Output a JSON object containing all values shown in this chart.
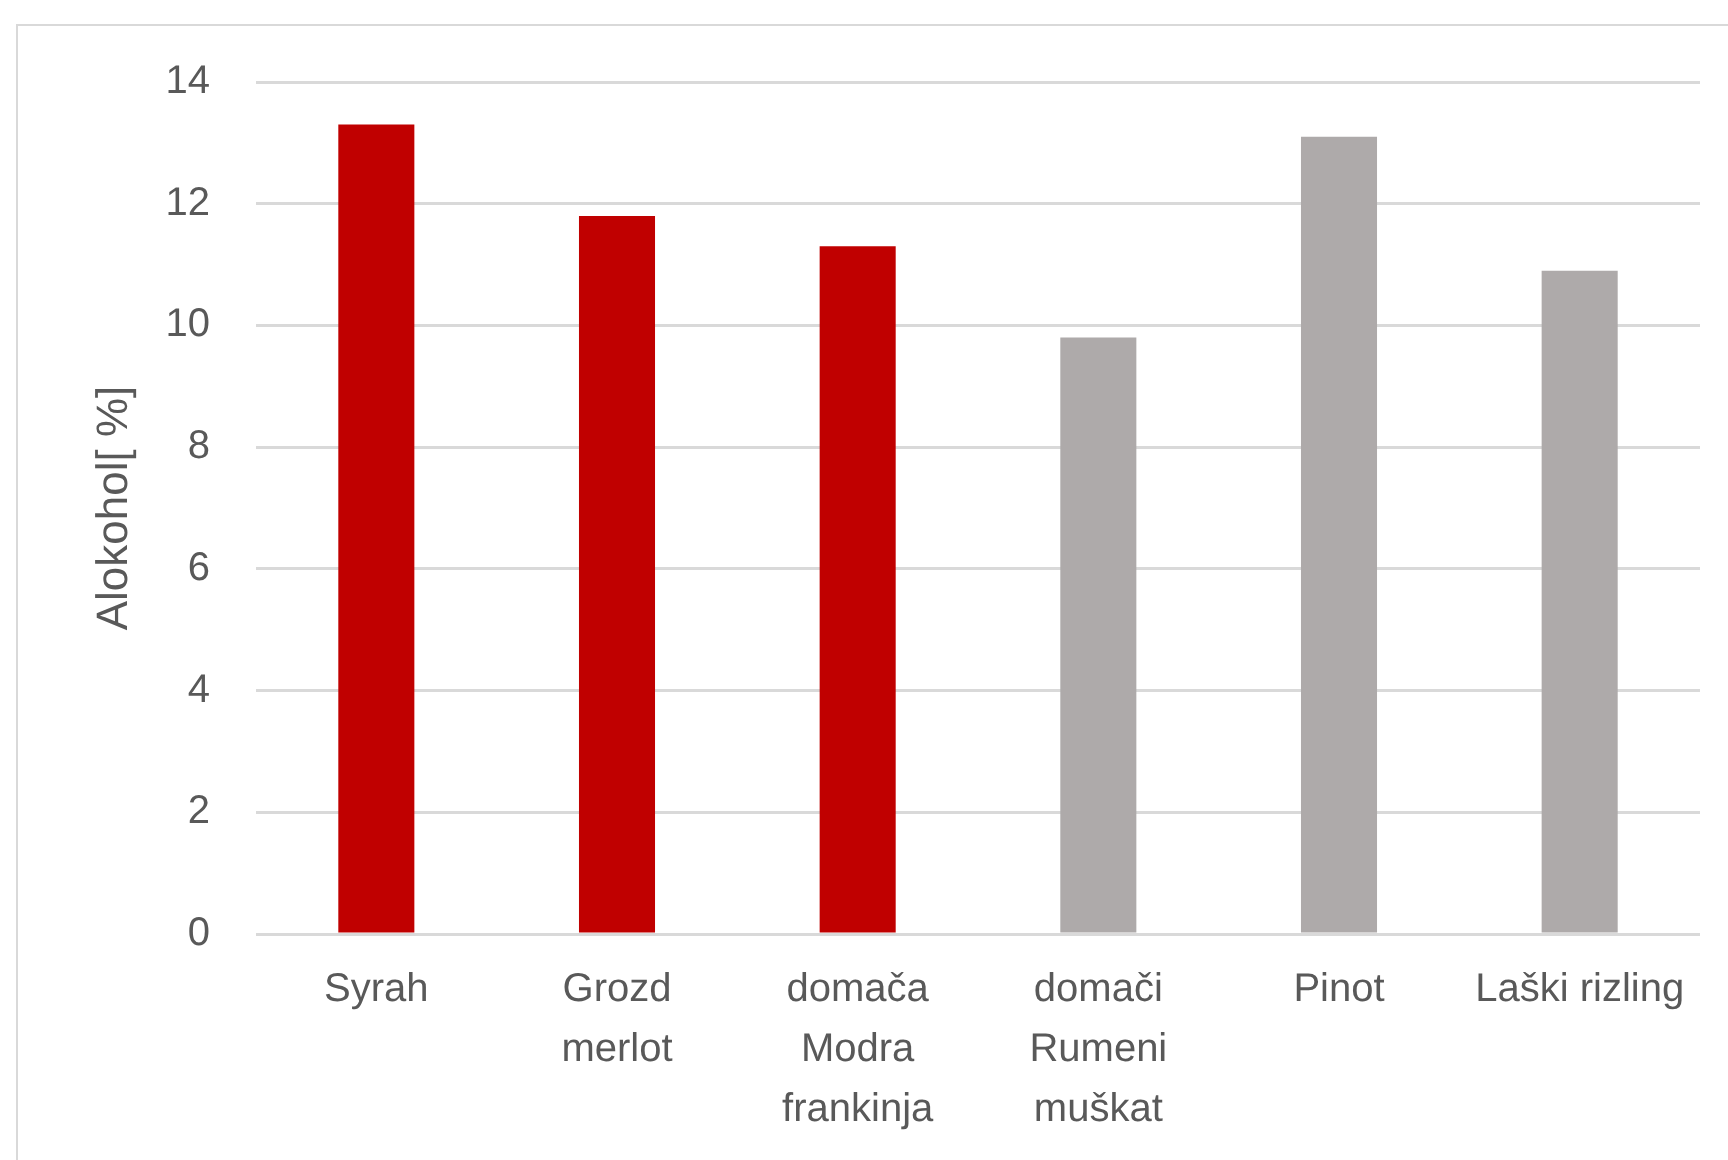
{
  "chart_data": {
    "type": "bar",
    "ylabel": "Alokohol[ %]",
    "categories": [
      "Syrah",
      "Grozd merlot",
      "domača Modra frankinja",
      "domači Rumeni muškat",
      "Pinot",
      "Laški rizling"
    ],
    "values": [
      13.3,
      11.8,
      11.3,
      9.8,
      13.1,
      10.9
    ],
    "colors": [
      "#c00000",
      "#c00000",
      "#c00000",
      "#aeaaaa",
      "#aeaaaa",
      "#aeaaaa"
    ],
    "ylim": [
      0,
      14
    ],
    "yticks": [
      0,
      2,
      4,
      6,
      8,
      10,
      12,
      14
    ],
    "grid": "y"
  }
}
